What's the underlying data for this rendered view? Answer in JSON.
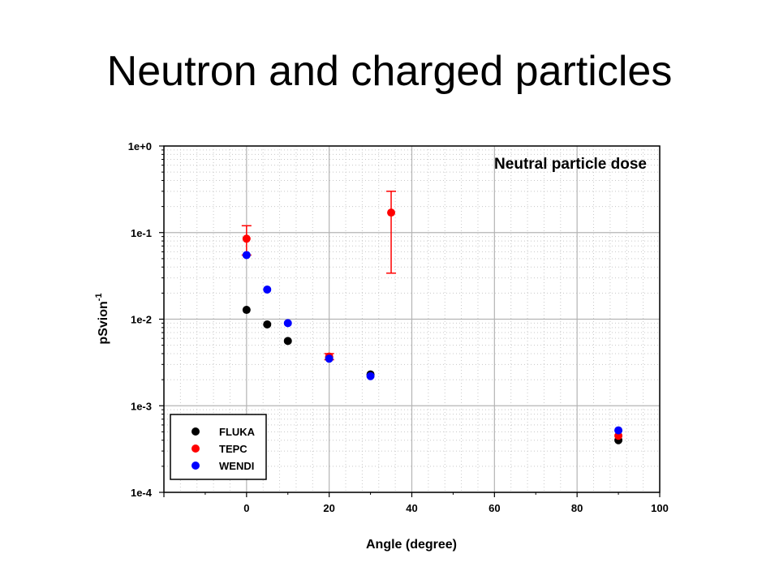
{
  "slide": {
    "title": "Neutron and charged particles"
  },
  "chart_data": {
    "type": "scatter",
    "title": "Neutral particle dose",
    "xlabel": "Angle (degree)",
    "ylabel": "pSvion",
    "ylabel_superscript": "-1",
    "xlim": [
      -20,
      100
    ],
    "ylim": [
      0.0001,
      1
    ],
    "yscale": "log",
    "grid": true,
    "x_ticks": [
      0,
      20,
      40,
      60,
      80,
      100
    ],
    "x_tick_labels": [
      "0",
      "20",
      "40",
      "60",
      "80",
      "100"
    ],
    "y_ticks": [
      1,
      0.1,
      0.01,
      0.001,
      0.0001
    ],
    "y_tick_labels": [
      "1e+0",
      "1e-1",
      "1e-2",
      "1e-3",
      "1e-4"
    ],
    "legend_position": "bottom-left",
    "series": [
      {
        "name": "FLUKA",
        "color": "#000000",
        "points": [
          {
            "x": 0,
            "y": 0.0128
          },
          {
            "x": 5,
            "y": 0.0087
          },
          {
            "x": 10,
            "y": 0.0056
          },
          {
            "x": 20,
            "y": 0.0036
          },
          {
            "x": 30,
            "y": 0.0023
          },
          {
            "x": 90,
            "y": 0.0004
          }
        ]
      },
      {
        "name": "TEPC",
        "color": "#ff0000",
        "points": [
          {
            "x": 0,
            "y": 0.085,
            "ylow": 0.055,
            "yhigh": 0.12
          },
          {
            "x": 20,
            "y": 0.0037,
            "ylow": 0.0034,
            "yhigh": 0.004
          },
          {
            "x": 35,
            "y": 0.17,
            "ylow": 0.034,
            "yhigh": 0.3
          },
          {
            "x": 90,
            "y": 0.00045
          }
        ]
      },
      {
        "name": "WENDI",
        "color": "#0000ff",
        "points": [
          {
            "x": 0,
            "y": 0.055
          },
          {
            "x": 5,
            "y": 0.022
          },
          {
            "x": 10,
            "y": 0.009
          },
          {
            "x": 20,
            "y": 0.0035
          },
          {
            "x": 30,
            "y": 0.0022
          },
          {
            "x": 90,
            "y": 0.00052
          }
        ]
      }
    ]
  }
}
